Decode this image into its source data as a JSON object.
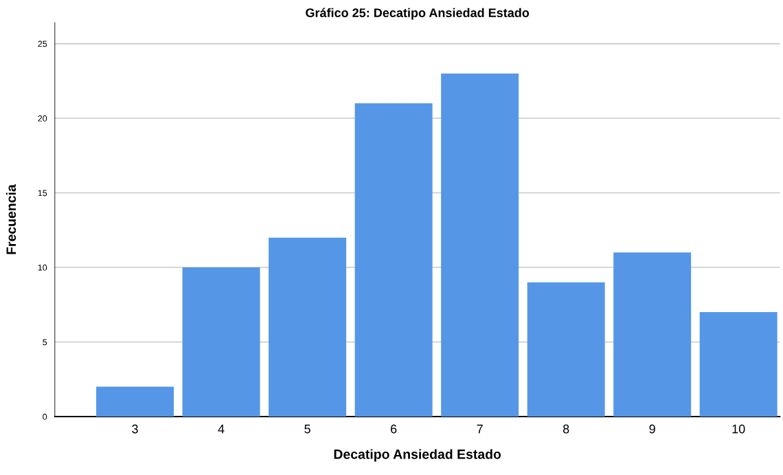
{
  "chart_data": {
    "type": "bar",
    "title": "Gráfico 25: Decatipo Ansiedad Estado",
    "xlabel": "Decatipo Ansiedad Estado",
    "ylabel": "Frecuencia",
    "categories": [
      "3",
      "4",
      "5",
      "6",
      "7",
      "8",
      "9",
      "10"
    ],
    "values": [
      2,
      10,
      12,
      21,
      23,
      9,
      11,
      7
    ],
    "color": "#5596e6",
    "ylim": [
      0,
      26.4
    ],
    "yticks": [
      0,
      5,
      10,
      15,
      20,
      25
    ],
    "grid": "y"
  }
}
